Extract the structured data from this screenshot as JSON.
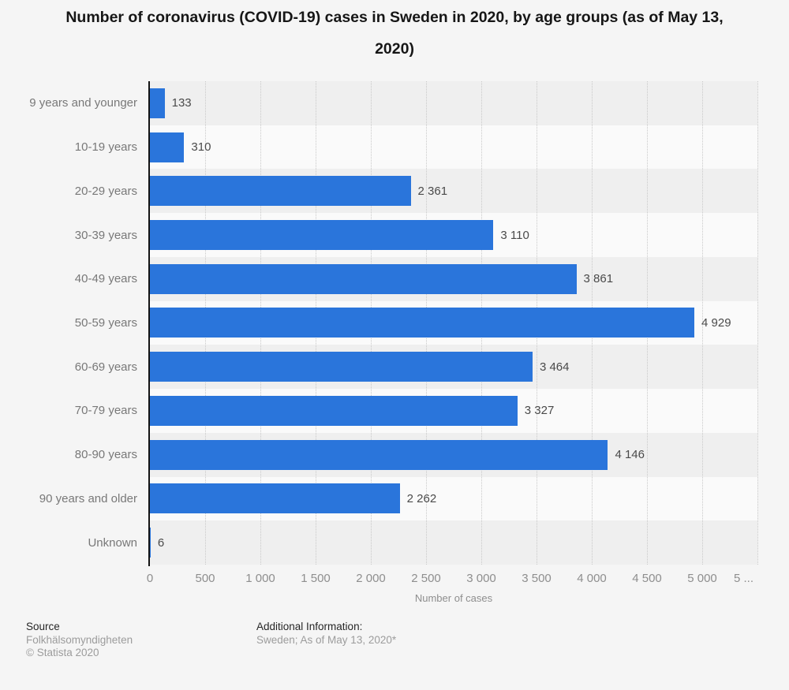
{
  "chart_data": {
    "type": "bar",
    "orientation": "horizontal",
    "title": "Number of coronavirus (COVID-19) cases in Sweden in 2020, by age groups (as of May 13, 2020)",
    "categories": [
      "9 years and younger",
      "10-19 years",
      "20-29 years",
      "30-39 years",
      "40-49 years",
      "50-59 years",
      "60-69 years",
      "70-79 years",
      "80-90 years",
      "90 years and older",
      "Unknown"
    ],
    "values": [
      133,
      310,
      2361,
      3110,
      3861,
      4929,
      3464,
      3327,
      4146,
      2262,
      6
    ],
    "value_labels": [
      "133",
      "310",
      "2 361",
      "3 110",
      "3 861",
      "4 929",
      "3 464",
      "3 327",
      "4 146",
      "2 262",
      "6"
    ],
    "xlabel": "Number of cases",
    "xlim": [
      0,
      5500
    ],
    "tick_values": [
      0,
      500,
      1000,
      1500,
      2000,
      2500,
      3000,
      3500,
      4000,
      4500,
      5000,
      5500
    ],
    "tick_labels": [
      "0",
      "500",
      "1 000",
      "1 500",
      "2 000",
      "2 500",
      "3 000",
      "3 500",
      "4 000",
      "4 500",
      "5 000",
      "5 ..."
    ],
    "grid": "vertical-dotted",
    "legend": "none",
    "colors": {
      "bar": "#2a75db",
      "band_odd": "#efefef",
      "band_even": "#fafafa",
      "axis_line": "#141414",
      "gridline": "#c9c9c9",
      "background": "#f5f5f5"
    }
  },
  "footer": {
    "source_label": "Source",
    "source_name": "Folkhälsomyndigheten",
    "copyright": "© Statista 2020",
    "additional_label": "Additional Information:",
    "additional_text": "Sweden; As of May 13, 2020*"
  }
}
